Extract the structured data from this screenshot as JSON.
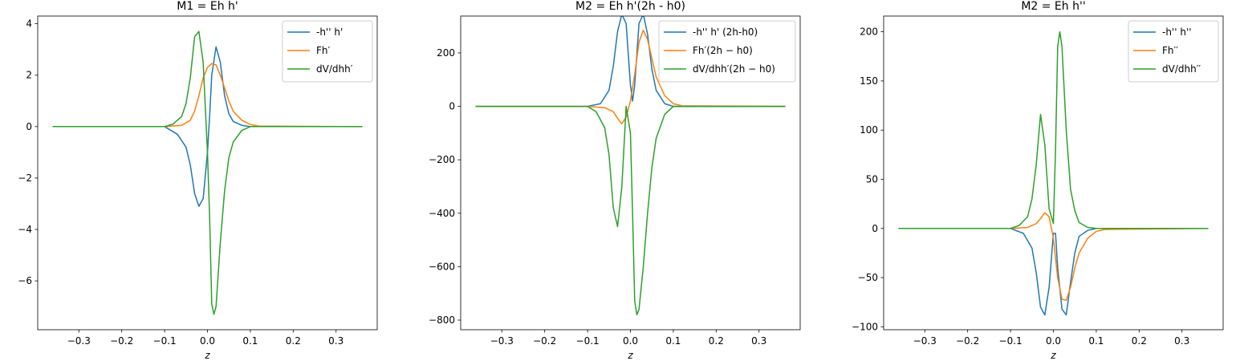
{
  "colors": {
    "c0": "#1f77b4",
    "c1": "#ff7f0e",
    "c2": "#2ca02c"
  },
  "chart_data": [
    {
      "type": "line",
      "title": "M1 = Eh h'",
      "xlabel": "z",
      "ylabel": "",
      "xlim": [
        -0.396,
        0.396
      ],
      "ylim": [
        -7.9,
        4.3
      ],
      "xticks": [
        -0.3,
        -0.2,
        -0.1,
        0.0,
        0.1,
        0.2,
        0.3
      ],
      "xtick_labels": [
        "−0.3",
        "−0.2",
        "−0.1",
        "0.0",
        "0.1",
        "0.2",
        "0.3"
      ],
      "yticks": [
        -6,
        -4,
        -2,
        0,
        2,
        4
      ],
      "ytick_labels": [
        "−6",
        "−4",
        "−2",
        "0",
        "2",
        "4"
      ],
      "legend_position": "upper-right",
      "series": [
        {
          "name": "-h'' h'",
          "color": "#1f77b4",
          "x": [
            -0.36,
            -0.1,
            -0.07,
            -0.05,
            -0.04,
            -0.03,
            -0.02,
            -0.01,
            0.0,
            0.005,
            0.01,
            0.02,
            0.03,
            0.04,
            0.05,
            0.06,
            0.08,
            0.1,
            0.36
          ],
          "y": [
            0,
            0,
            -0.3,
            -0.8,
            -1.5,
            -2.6,
            -3.1,
            -2.8,
            -1.0,
            0.4,
            2.0,
            3.1,
            2.5,
            1.2,
            0.5,
            0.2,
            0.05,
            0.0,
            0
          ]
        },
        {
          "name": "Fh′",
          "color": "#ff7f0e",
          "x": [
            -0.36,
            -0.1,
            -0.06,
            -0.04,
            -0.03,
            -0.02,
            -0.01,
            0.0,
            0.01,
            0.02,
            0.03,
            0.04,
            0.05,
            0.06,
            0.08,
            0.1,
            0.12,
            0.36
          ],
          "y": [
            0,
            0,
            0.05,
            0.25,
            0.6,
            1.2,
            1.9,
            2.3,
            2.45,
            2.4,
            2.0,
            1.5,
            1.0,
            0.6,
            0.25,
            0.08,
            0.02,
            0
          ]
        },
        {
          "name": "dV/dhh′",
          "color": "#2ca02c",
          "x": [
            -0.36,
            -0.1,
            -0.08,
            -0.06,
            -0.05,
            -0.04,
            -0.03,
            -0.02,
            -0.01,
            0.0,
            0.005,
            0.01,
            0.015,
            0.02,
            0.03,
            0.04,
            0.05,
            0.06,
            0.08,
            0.1,
            0.36
          ],
          "y": [
            0,
            0,
            0.1,
            0.4,
            0.9,
            1.9,
            3.5,
            3.7,
            2.5,
            -1.0,
            -3.5,
            -6.9,
            -7.3,
            -7.0,
            -4.5,
            -2.5,
            -1.2,
            -0.6,
            -0.15,
            0.0,
            0
          ]
        }
      ]
    },
    {
      "type": "line",
      "title": "M2 = Eh h'(2h - h0)",
      "xlabel": "z",
      "ylabel": "",
      "xlim": [
        -0.396,
        0.396
      ],
      "ylim": [
        -836,
        338
      ],
      "xticks": [
        -0.3,
        -0.2,
        -0.1,
        0.0,
        0.1,
        0.2,
        0.3
      ],
      "xtick_labels": [
        "−0.3",
        "−0.2",
        "−0.1",
        "0.0",
        "0.1",
        "0.2",
        "0.3"
      ],
      "yticks": [
        -800,
        -600,
        -400,
        -200,
        0,
        200
      ],
      "ytick_labels": [
        "−800",
        "−600",
        "−400",
        "−200",
        "0",
        "200"
      ],
      "legend_position": "upper-right",
      "series": [
        {
          "name": "-h'' h' (2h-h0)",
          "color": "#1f77b4",
          "x": [
            -0.36,
            -0.1,
            -0.07,
            -0.05,
            -0.04,
            -0.03,
            -0.02,
            -0.01,
            0.0,
            0.005,
            0.01,
            0.02,
            0.03,
            0.04,
            0.05,
            0.06,
            0.08,
            0.1,
            0.36
          ],
          "y": [
            0,
            0,
            10,
            60,
            150,
            280,
            345,
            310,
            80,
            20,
            80,
            310,
            345,
            270,
            140,
            60,
            10,
            0,
            0
          ]
        },
        {
          "name": "Fh′(2h − h0)",
          "color": "#ff7f0e",
          "x": [
            -0.36,
            -0.1,
            -0.06,
            -0.04,
            -0.03,
            -0.02,
            -0.01,
            0.0,
            0.01,
            0.02,
            0.03,
            0.04,
            0.05,
            0.06,
            0.08,
            0.1,
            0.12,
            0.36
          ],
          "y": [
            0,
            0,
            -5,
            -20,
            -45,
            -65,
            -40,
            20,
            120,
            240,
            285,
            250,
            180,
            110,
            40,
            10,
            2,
            0
          ]
        },
        {
          "name": "dV/dhh′(2h − h0)",
          "color": "#2ca02c",
          "x": [
            -0.36,
            -0.1,
            -0.08,
            -0.06,
            -0.05,
            -0.04,
            -0.03,
            -0.02,
            -0.01,
            0.0,
            0.005,
            0.01,
            0.015,
            0.02,
            0.03,
            0.04,
            0.05,
            0.06,
            0.08,
            0.1,
            0.36
          ],
          "y": [
            0,
            0,
            -20,
            -80,
            -180,
            -380,
            -450,
            -300,
            0,
            -100,
            -400,
            -730,
            -780,
            -760,
            -600,
            -400,
            -230,
            -120,
            -30,
            0,
            0
          ]
        }
      ]
    },
    {
      "type": "line",
      "title": "M2 = Eh h''",
      "xlabel": "z",
      "ylabel": "",
      "xlim": [
        -0.396,
        0.396
      ],
      "ylim": [
        -103,
        216
      ],
      "xticks": [
        -0.3,
        -0.2,
        -0.1,
        0.0,
        0.1,
        0.2,
        0.3
      ],
      "xtick_labels": [
        "−0.3",
        "−0.2",
        "−0.1",
        "0.0",
        "0.1",
        "0.2",
        "0.3"
      ],
      "yticks": [
        -100,
        -50,
        0,
        50,
        100,
        150,
        200
      ],
      "ytick_labels": [
        "−100",
        "−50",
        "0",
        "50",
        "100",
        "150",
        "200"
      ],
      "legend_position": "upper-right",
      "series": [
        {
          "name": "-h'' h''",
          "color": "#1f77b4",
          "x": [
            -0.36,
            -0.1,
            -0.07,
            -0.05,
            -0.04,
            -0.03,
            -0.02,
            -0.01,
            0.0,
            0.005,
            0.01,
            0.02,
            0.03,
            0.04,
            0.05,
            0.06,
            0.08,
            0.1,
            0.36
          ],
          "y": [
            0,
            0,
            -5,
            -20,
            -45,
            -80,
            -88,
            -60,
            -5,
            -5,
            -40,
            -82,
            -88,
            -55,
            -25,
            -8,
            -2,
            0,
            0
          ]
        },
        {
          "name": "Fh′′",
          "color": "#ff7f0e",
          "x": [
            -0.36,
            -0.1,
            -0.06,
            -0.04,
            -0.03,
            -0.02,
            -0.01,
            0.0,
            0.01,
            0.02,
            0.03,
            0.04,
            0.05,
            0.06,
            0.08,
            0.1,
            0.12,
            0.36
          ],
          "y": [
            0,
            0,
            1,
            5,
            10,
            16,
            12,
            -10,
            -50,
            -72,
            -73,
            -60,
            -40,
            -25,
            -10,
            -3,
            -1,
            0
          ]
        },
        {
          "name": "dV/dhh′′",
          "color": "#2ca02c",
          "x": [
            -0.36,
            -0.1,
            -0.08,
            -0.06,
            -0.05,
            -0.04,
            -0.03,
            -0.02,
            -0.01,
            0.0,
            0.005,
            0.01,
            0.015,
            0.02,
            0.03,
            0.04,
            0.05,
            0.06,
            0.08,
            0.1,
            0.36
          ],
          "y": [
            0,
            0,
            3,
            12,
            30,
            65,
            116,
            85,
            20,
            5,
            80,
            185,
            200,
            185,
            100,
            40,
            18,
            6,
            1,
            0,
            0
          ]
        }
      ]
    }
  ]
}
